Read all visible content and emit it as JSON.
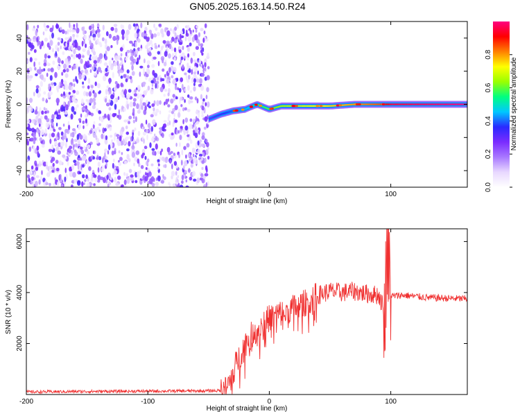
{
  "title": "GN05.2025.163.14.50.R24",
  "chart_data": [
    {
      "type": "heatmap",
      "xlabel": "Height of straight line (km)",
      "ylabel": "Frequency (Hz)",
      "xlim": [
        -200,
        163
      ],
      "ylim": [
        -50,
        50
      ],
      "x_ticks": [
        -200,
        -100,
        0,
        100
      ],
      "y_ticks": [
        -40,
        -20,
        0,
        20,
        40
      ],
      "colorbar": {
        "label": "Normalized spectral amplitude",
        "range": [
          0,
          1
        ],
        "ticks": [
          0.0,
          0.2,
          0.4,
          0.6,
          0.8
        ],
        "tick_labels": [
          "0.0",
          "0.2",
          "0.4",
          "0.6",
          "0.8"
        ],
        "colormap": [
          "#ffffff",
          "#e8d8ff",
          "#a878ff",
          "#7a2cff",
          "#2a2aff",
          "#00c8ff",
          "#00ff80",
          "#9aff00",
          "#ffff00",
          "#ff8000",
          "#ff0000",
          "#ff0080"
        ]
      },
      "noise_region": {
        "x_range": [
          -200,
          -50
        ],
        "freq_range": [
          -50,
          48
        ],
        "amplitude_range": [
          0.0,
          0.2
        ]
      },
      "signal_track": [
        {
          "x": -50,
          "freq": -9,
          "amp": 0.25
        },
        {
          "x": -40,
          "freq": -6,
          "amp": 0.3
        },
        {
          "x": -30,
          "freq": -4,
          "amp": 0.35
        },
        {
          "x": -20,
          "freq": -3,
          "amp": 0.4
        },
        {
          "x": -10,
          "freq": 0,
          "amp": 0.5
        },
        {
          "x": 0,
          "freq": -3,
          "amp": 0.55
        },
        {
          "x": 10,
          "freq": -1,
          "amp": 0.6
        },
        {
          "x": 30,
          "freq": -1,
          "amp": 0.65
        },
        {
          "x": 50,
          "freq": -1,
          "amp": 0.7
        },
        {
          "x": 70,
          "freq": 0,
          "amp": 0.75
        },
        {
          "x": 90,
          "freq": 0,
          "amp": 0.8
        },
        {
          "x": 100,
          "freq": 0,
          "amp": 0.9
        },
        {
          "x": 163,
          "freq": 0,
          "amp": 0.95
        }
      ]
    },
    {
      "type": "line",
      "xlabel": "Height of straight line (km)",
      "ylabel": "SNR (10 * v/v)",
      "xlim": [
        -200,
        163
      ],
      "ylim": [
        0,
        6500
      ],
      "x_ticks": [
        -200,
        -100,
        0,
        100
      ],
      "y_ticks": [
        2000,
        4000,
        6000
      ],
      "series": [
        {
          "color": "#f03030",
          "x": [
            -200,
            -150,
            -100,
            -60,
            -40,
            -35,
            -30,
            -20,
            -10,
            0,
            10,
            20,
            30,
            40,
            50,
            60,
            70,
            80,
            90,
            95,
            97,
            100,
            110,
            130,
            163
          ],
          "y": [
            100,
            120,
            130,
            140,
            150,
            200,
            900,
            2000,
            2600,
            3000,
            3200,
            3400,
            3600,
            3900,
            4050,
            4000,
            4050,
            3950,
            3900,
            3300,
            5800,
            3850,
            3900,
            3800,
            3750
          ]
        }
      ]
    }
  ]
}
